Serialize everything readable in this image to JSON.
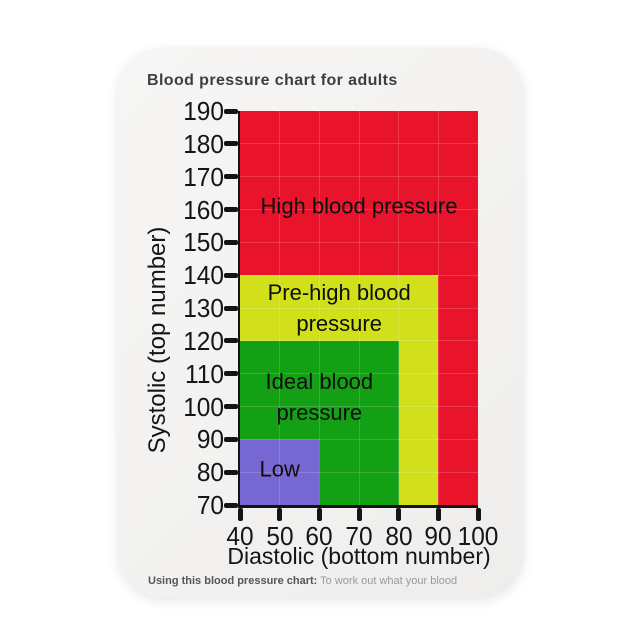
{
  "title": "Blood pressure chart for adults",
  "footer": {
    "bold_label": "Using this blood pressure chart:",
    "text": " To work out what your blood"
  },
  "colors": {
    "high": "#e9142b",
    "pre_high": "#d2e01c",
    "ideal": "#14a014",
    "low": "#7667d3",
    "axis": "#141414",
    "title_text": "#3e3e3e",
    "magnet_background": "#f4f3f1"
  },
  "chart_data": {
    "type": "area",
    "title": "Blood pressure chart for adults",
    "xlabel": "Diastolic (bottom number)",
    "ylabel": "Systolic (top number)",
    "xlim": [
      40,
      100
    ],
    "ylim": [
      70,
      190
    ],
    "x_ticks": [
      40,
      50,
      60,
      70,
      80,
      90,
      100
    ],
    "y_ticks": [
      70,
      80,
      90,
      100,
      110,
      120,
      130,
      140,
      150,
      160,
      170,
      180,
      190
    ],
    "grid": true,
    "legend": "labels drawn inside regions",
    "regions": [
      {
        "name": "high-blood-pressure",
        "label": "High blood pressure",
        "label_lines": [
          "High blood pressure"
        ],
        "color": "#e9142b",
        "diastolic": [
          40,
          100
        ],
        "systolic": [
          70,
          190
        ],
        "label_at": {
          "x": 70,
          "y": 161
        }
      },
      {
        "name": "pre-high-blood-pressure",
        "label": "Pre-high blood pressure",
        "label_lines": [
          "Pre-high blood",
          "pressure"
        ],
        "color": "#d2e01c",
        "diastolic": [
          40,
          90
        ],
        "systolic": [
          70,
          140
        ],
        "label_at": {
          "x": 65,
          "y": 130
        }
      },
      {
        "name": "ideal-blood-pressure",
        "label": "Ideal blood pressure",
        "label_lines": [
          "Ideal blood",
          "pressure"
        ],
        "color": "#14a014",
        "diastolic": [
          40,
          80
        ],
        "systolic": [
          70,
          120
        ],
        "label_at": {
          "x": 60,
          "y": 103
        }
      },
      {
        "name": "low",
        "label": "Low",
        "label_lines": [
          "Low"
        ],
        "color": "#7667d3",
        "diastolic": [
          40,
          60
        ],
        "systolic": [
          70,
          90
        ],
        "label_at": {
          "x": 50,
          "y": 81
        }
      }
    ]
  }
}
